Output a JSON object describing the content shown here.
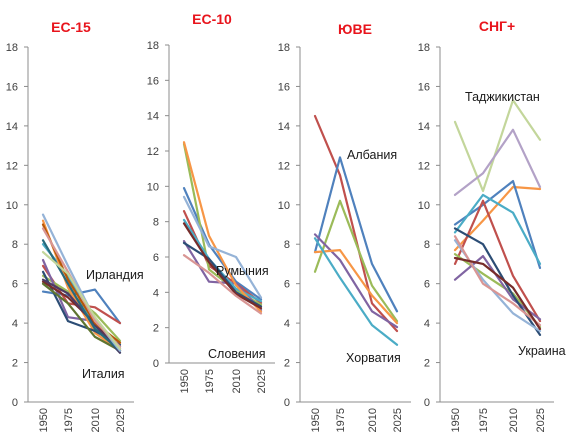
{
  "chart_data": [
    {
      "type": "line",
      "title": "ЕС-15",
      "x": [
        "1950",
        "1975",
        "2010",
        "2025"
      ],
      "ylim": [
        0,
        18
      ],
      "yticks": [
        0,
        2,
        4,
        6,
        8,
        10,
        12,
        14,
        16,
        18
      ],
      "grid": false,
      "annotations": [
        "Ирландия",
        "Италия"
      ],
      "series": [
        {
          "color": "#4f81bd",
          "values": [
            5.6,
            5.4,
            5.7,
            4.0
          ]
        },
        {
          "color": "#c0504d",
          "values": [
            6.9,
            5.0,
            4.8,
            4.0
          ]
        },
        {
          "color": "#9bbb59",
          "values": [
            6.4,
            5.6,
            4.5,
            3.1
          ]
        },
        {
          "color": "#8064a2",
          "values": [
            7.2,
            4.3,
            4.1,
            2.8
          ]
        },
        {
          "color": "#4bacc6",
          "values": [
            8.0,
            6.4,
            3.8,
            2.5
          ]
        },
        {
          "color": "#f79646",
          "values": [
            9.2,
            5.8,
            3.5,
            2.6
          ]
        },
        {
          "color": "#2c4d75",
          "values": [
            6.6,
            4.1,
            3.6,
            2.9
          ]
        },
        {
          "color": "#772c2a",
          "values": [
            6.1,
            5.3,
            4.0,
            2.7
          ]
        },
        {
          "color": "#5f7530",
          "values": [
            6.0,
            5.0,
            3.3,
            2.6
          ]
        },
        {
          "color": "#4d3b62",
          "values": [
            6.2,
            5.5,
            3.9,
            2.5
          ]
        },
        {
          "color": "#276a7c",
          "values": [
            8.2,
            6.0,
            3.7,
            2.6
          ]
        },
        {
          "color": "#b65708",
          "values": [
            9.0,
            6.2,
            4.0,
            3.0
          ]
        },
        {
          "color": "#95b3d7",
          "values": [
            9.5,
            6.9,
            4.2,
            2.6
          ]
        },
        {
          "color": "#d99694",
          "values": [
            8.8,
            6.6,
            4.1,
            2.8
          ]
        },
        {
          "color": "#c3d69b",
          "values": [
            7.6,
            6.5,
            4.3,
            2.7
          ]
        }
      ]
    },
    {
      "type": "line",
      "title": "ЕС-10",
      "x": [
        "1950",
        "1975",
        "2010",
        "2025"
      ],
      "ylim": [
        0,
        18
      ],
      "yticks": [
        0,
        2,
        4,
        6,
        8,
        10,
        12,
        14,
        16,
        18
      ],
      "grid": false,
      "annotations": [
        "Румыния",
        "Словения"
      ],
      "series": [
        {
          "color": "#4f81bd",
          "values": [
            9.9,
            6.7,
            4.6,
            3.6
          ]
        },
        {
          "color": "#c0504d",
          "values": [
            8.6,
            5.5,
            4.5,
            3.4
          ]
        },
        {
          "color": "#9bbb59",
          "values": [
            12.4,
            5.3,
            4.1,
            3.3
          ]
        },
        {
          "color": "#8064a2",
          "values": [
            6.9,
            4.6,
            4.5,
            3.0
          ]
        },
        {
          "color": "#4bacc6",
          "values": [
            8.1,
            5.9,
            4.2,
            3.5
          ]
        },
        {
          "color": "#f79646",
          "values": [
            12.5,
            7.2,
            4.4,
            2.9
          ]
        },
        {
          "color": "#2c4d75",
          "values": [
            6.8,
            5.9,
            4.0,
            3.2
          ]
        },
        {
          "color": "#772c2a",
          "values": [
            7.9,
            5.7,
            3.9,
            3.1
          ]
        },
        {
          "color": "#95b3d7",
          "values": [
            9.4,
            6.6,
            6.0,
            3.7
          ]
        },
        {
          "color": "#d99694",
          "values": [
            6.1,
            5.1,
            3.8,
            2.8
          ]
        }
      ]
    },
    {
      "type": "line",
      "title": "ЮВЕ",
      "x": [
        "1950",
        "1975",
        "2010",
        "2025"
      ],
      "ylim": [
        0,
        18
      ],
      "yticks": [
        0,
        2,
        4,
        6,
        8,
        10,
        12,
        14,
        16,
        18
      ],
      "grid": false,
      "annotations": [
        "Албания",
        "Хорватия"
      ],
      "series": [
        {
          "color": "#c0504d",
          "values": [
            14.5,
            11.5,
            5.0,
            3.6
          ]
        },
        {
          "color": "#4f81bd",
          "values": [
            7.6,
            12.4,
            7.0,
            4.6
          ]
        },
        {
          "color": "#9bbb59",
          "values": [
            6.6,
            10.2,
            5.9,
            4.1
          ]
        },
        {
          "color": "#8064a2",
          "values": [
            8.5,
            7.2,
            4.6,
            3.8
          ]
        },
        {
          "color": "#f79646",
          "values": [
            7.6,
            7.7,
            5.4,
            4.0
          ]
        },
        {
          "color": "#4bacc6",
          "values": [
            8.3,
            6.3,
            3.9,
            2.9
          ]
        }
      ]
    },
    {
      "type": "line",
      "title": "СНГ+",
      "x": [
        "1950",
        "1975",
        "2010",
        "2025"
      ],
      "ylim": [
        0,
        18
      ],
      "yticks": [
        0,
        2,
        4,
        6,
        8,
        10,
        12,
        14,
        16,
        18
      ],
      "grid": false,
      "annotations": [
        "Таджикистан",
        "Украина"
      ],
      "series": [
        {
          "color": "#c3d69b",
          "values": [
            14.2,
            10.7,
            15.3,
            13.3
          ]
        },
        {
          "color": "#b3a2c7",
          "values": [
            10.5,
            11.6,
            13.8,
            10.9
          ]
        },
        {
          "color": "#f79646",
          "values": [
            7.7,
            9.2,
            10.9,
            10.8
          ]
        },
        {
          "color": "#4f81bd",
          "values": [
            9.0,
            10.0,
            11.2,
            6.8
          ]
        },
        {
          "color": "#4bacc6",
          "values": [
            8.6,
            10.5,
            9.6,
            7.0
          ]
        },
        {
          "color": "#c0504d",
          "values": [
            7.0,
            10.2,
            6.4,
            4.1
          ]
        },
        {
          "color": "#9bbb59",
          "values": [
            7.5,
            6.5,
            5.5,
            3.8
          ]
        },
        {
          "color": "#8064a2",
          "values": [
            6.2,
            7.4,
            5.2,
            4.2
          ]
        },
        {
          "color": "#2c4d75",
          "values": [
            8.8,
            8.0,
            5.4,
            3.4
          ]
        },
        {
          "color": "#95b3d7",
          "values": [
            8.2,
            6.2,
            4.5,
            3.6
          ]
        },
        {
          "color": "#d99694",
          "values": [
            8.4,
            6.0,
            5.0,
            3.9
          ]
        },
        {
          "color": "#772c2a",
          "values": [
            7.3,
            7.0,
            5.8,
            3.7
          ]
        }
      ]
    }
  ]
}
